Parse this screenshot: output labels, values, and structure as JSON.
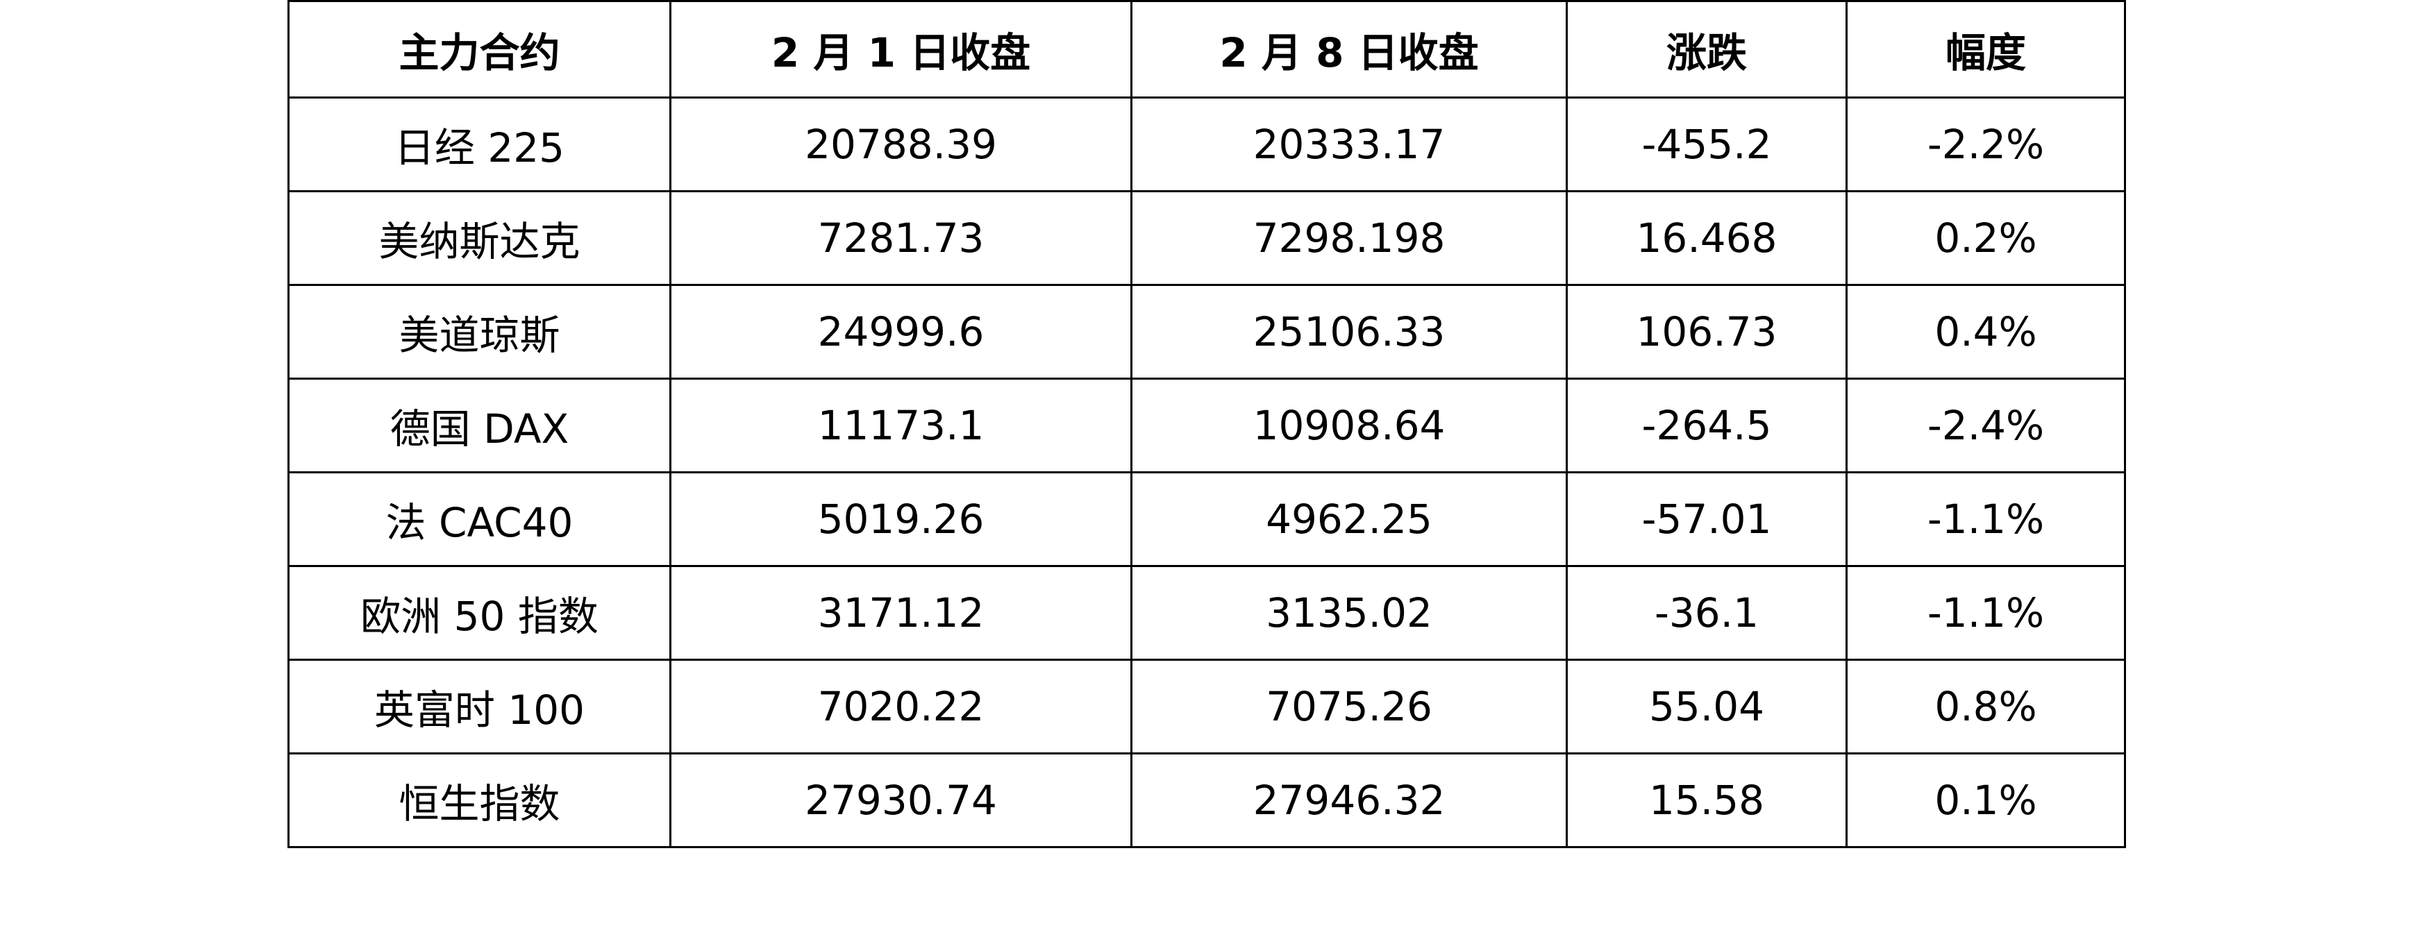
{
  "table": {
    "headers": [
      "主力合约",
      "2 月 1 日收盘",
      "2 月 8 日收盘",
      "涨跌",
      "幅度"
    ],
    "rows": [
      [
        "日经 225",
        "20788.39",
        "20333.17",
        "-455.2",
        "-2.2%"
      ],
      [
        "美纳斯达克",
        "7281.73",
        "7298.198",
        "16.468",
        "0.2%"
      ],
      [
        "美道琼斯",
        "24999.6",
        "25106.33",
        "106.73",
        "0.4%"
      ],
      [
        "德国 DAX",
        "11173.1",
        "10908.64",
        "-264.5",
        "-2.4%"
      ],
      [
        "法 CAC40",
        "5019.26",
        "4962.25",
        "-57.01",
        "-1.1%"
      ],
      [
        "欧洲 50 指数",
        "3171.12",
        "3135.02",
        "-36.1",
        "-1.1%"
      ],
      [
        "英富时 100",
        "7020.22",
        "7075.26",
        "55.04",
        "0.8%"
      ],
      [
        "恒生指数",
        "27930.74",
        "27946.32",
        "15.58",
        "0.1%"
      ]
    ]
  }
}
